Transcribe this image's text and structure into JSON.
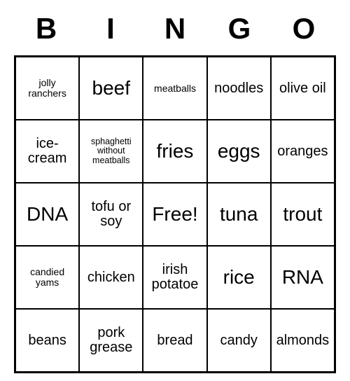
{
  "header": {
    "letters": [
      "B",
      "I",
      "N",
      "G",
      "O"
    ]
  },
  "grid": {
    "cells": [
      {
        "text": "jolly ranchers",
        "size": "sm"
      },
      {
        "text": "beef",
        "size": "lg"
      },
      {
        "text": "meatballs",
        "size": "sm"
      },
      {
        "text": "noodles",
        "size": "md"
      },
      {
        "text": "olive oil",
        "size": "md"
      },
      {
        "text": "ice-cream",
        "size": "md"
      },
      {
        "text": "sphaghetti without meatballs",
        "size": "xs"
      },
      {
        "text": "fries",
        "size": "lg"
      },
      {
        "text": "eggs",
        "size": "lg"
      },
      {
        "text": "oranges",
        "size": "md"
      },
      {
        "text": "DNA",
        "size": "lg"
      },
      {
        "text": "tofu or soy",
        "size": "md"
      },
      {
        "text": "Free!",
        "size": "lg"
      },
      {
        "text": "tuna",
        "size": "lg"
      },
      {
        "text": "trout",
        "size": "lg"
      },
      {
        "text": "candied yams",
        "size": "sm"
      },
      {
        "text": "chicken",
        "size": "md"
      },
      {
        "text": "irish potatoe",
        "size": "md"
      },
      {
        "text": "rice",
        "size": "lg"
      },
      {
        "text": "RNA",
        "size": "lg"
      },
      {
        "text": "beans",
        "size": "md"
      },
      {
        "text": "pork grease",
        "size": "md"
      },
      {
        "text": "bread",
        "size": "md"
      },
      {
        "text": "candy",
        "size": "md"
      },
      {
        "text": "almonds",
        "size": "md"
      }
    ]
  },
  "colors": {
    "background": "#ffffff",
    "border": "#000000",
    "text": "#000000"
  }
}
